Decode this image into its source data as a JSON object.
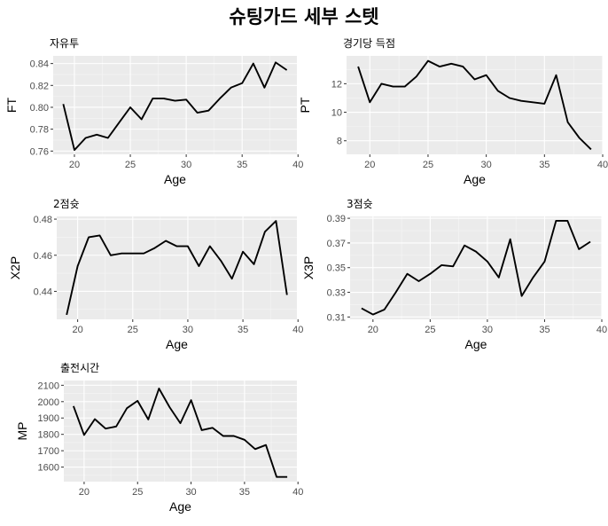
{
  "figure_title": "슈팅가드 세부 스텟",
  "chart_data": [
    {
      "type": "line",
      "title": "자유투",
      "xlabel": "Age",
      "ylabel": "FT",
      "xlim": [
        18.1,
        39.9
      ],
      "ylim": [
        0.757,
        0.847
      ],
      "x_ticks": [
        20,
        25,
        30,
        35,
        40
      ],
      "y_ticks": [
        0.76,
        0.78,
        0.8,
        0.82,
        0.84
      ],
      "y_tick_labels": [
        "0.76",
        "0.78",
        "0.80",
        "0.82",
        "0.84"
      ],
      "x": [
        19,
        20,
        21,
        22,
        23,
        24,
        25,
        26,
        27,
        28,
        29,
        30,
        31,
        32,
        33,
        34,
        35,
        36,
        37,
        38,
        39
      ],
      "y": [
        0.803,
        0.761,
        0.772,
        0.775,
        0.772,
        0.786,
        0.8,
        0.789,
        0.808,
        0.808,
        0.806,
        0.807,
        0.795,
        0.797,
        0.808,
        0.818,
        0.822,
        0.84,
        0.818,
        0.841,
        0.834
      ],
      "grid": true
    },
    {
      "type": "line",
      "title": "경기당 득점",
      "xlabel": "Age",
      "ylabel": "PT",
      "xlim": [
        18.0,
        40.0
      ],
      "ylim": [
        7.05,
        13.95
      ],
      "x_ticks": [
        20,
        25,
        30,
        35,
        40
      ],
      "y_ticks": [
        8,
        10,
        12
      ],
      "y_tick_labels": [
        "8",
        "10",
        "12"
      ],
      "x": [
        19,
        20,
        21,
        22,
        23,
        24,
        25,
        26,
        27,
        28,
        29,
        30,
        31,
        32,
        33,
        34,
        35,
        36,
        37,
        38,
        39
      ],
      "y": [
        13.2,
        10.7,
        12.0,
        11.8,
        11.8,
        12.5,
        13.6,
        13.2,
        13.4,
        13.2,
        12.3,
        12.6,
        11.5,
        11.0,
        10.8,
        10.7,
        10.6,
        12.6,
        9.3,
        8.2,
        7.4
      ],
      "grid": true
    },
    {
      "type": "line",
      "title": "2점슛",
      "xlabel": "Age",
      "ylabel": "X2P",
      "xlim": [
        18.1,
        39.9
      ],
      "ylim": [
        0.4245,
        0.4815
      ],
      "x_ticks": [
        20,
        25,
        30,
        35,
        40
      ],
      "y_ticks": [
        0.44,
        0.46,
        0.48
      ],
      "y_tick_labels": [
        "0.44",
        "0.46",
        "0.48"
      ],
      "x": [
        19,
        20,
        21,
        22,
        23,
        24,
        25,
        26,
        27,
        28,
        29,
        30,
        31,
        32,
        33,
        34,
        35,
        36,
        37,
        38,
        39
      ],
      "y": [
        0.427,
        0.454,
        0.47,
        0.471,
        0.46,
        0.461,
        0.461,
        0.461,
        0.464,
        0.468,
        0.465,
        0.465,
        0.454,
        0.465,
        0.457,
        0.447,
        0.462,
        0.455,
        0.473,
        0.479,
        0.438
      ],
      "grid": true
    },
    {
      "type": "line",
      "title": "3점슛",
      "xlabel": "Age",
      "ylabel": "X3P",
      "xlim": [
        18.0,
        40.0
      ],
      "ylim": [
        0.3081,
        0.3915
      ],
      "x_ticks": [
        20,
        25,
        30,
        35,
        40
      ],
      "y_ticks": [
        0.31,
        0.33,
        0.35,
        0.37,
        0.39
      ],
      "y_tick_labels": [
        "0.31",
        "0.33",
        "0.35",
        "0.37",
        "0.39"
      ],
      "x": [
        19,
        20,
        21,
        22,
        23,
        24,
        25,
        26,
        27,
        28,
        29,
        30,
        31,
        32,
        33,
        34,
        35,
        36,
        37,
        38,
        39
      ],
      "y": [
        0.317,
        0.312,
        0.316,
        0.33,
        0.345,
        0.339,
        0.345,
        0.352,
        0.351,
        0.368,
        0.363,
        0.355,
        0.342,
        0.373,
        0.327,
        0.342,
        0.355,
        0.388,
        0.388,
        0.365,
        0.371
      ],
      "grid": true
    },
    {
      "type": "line",
      "title": "출전시간",
      "xlabel": "Age",
      "ylabel": "MP",
      "xlim": [
        18.1,
        39.9
      ],
      "ylim": [
        1511,
        2129
      ],
      "x_ticks": [
        20,
        25,
        30,
        35,
        40
      ],
      "y_ticks": [
        1600,
        1700,
        1800,
        1900,
        2000,
        2100
      ],
      "y_tick_labels": [
        "1600",
        "1700",
        "1800",
        "1900",
        "2000",
        "2100"
      ],
      "x": [
        19,
        20,
        21,
        22,
        23,
        24,
        25,
        26,
        27,
        28,
        29,
        30,
        31,
        32,
        33,
        34,
        35,
        36,
        37,
        38,
        39
      ],
      "y": [
        1973,
        1796,
        1893,
        1835,
        1848,
        1960,
        2005,
        1891,
        2080,
        1966,
        1868,
        2009,
        1826,
        1840,
        1790,
        1790,
        1767,
        1710,
        1735,
        1540,
        1540
      ],
      "grid": true
    }
  ]
}
